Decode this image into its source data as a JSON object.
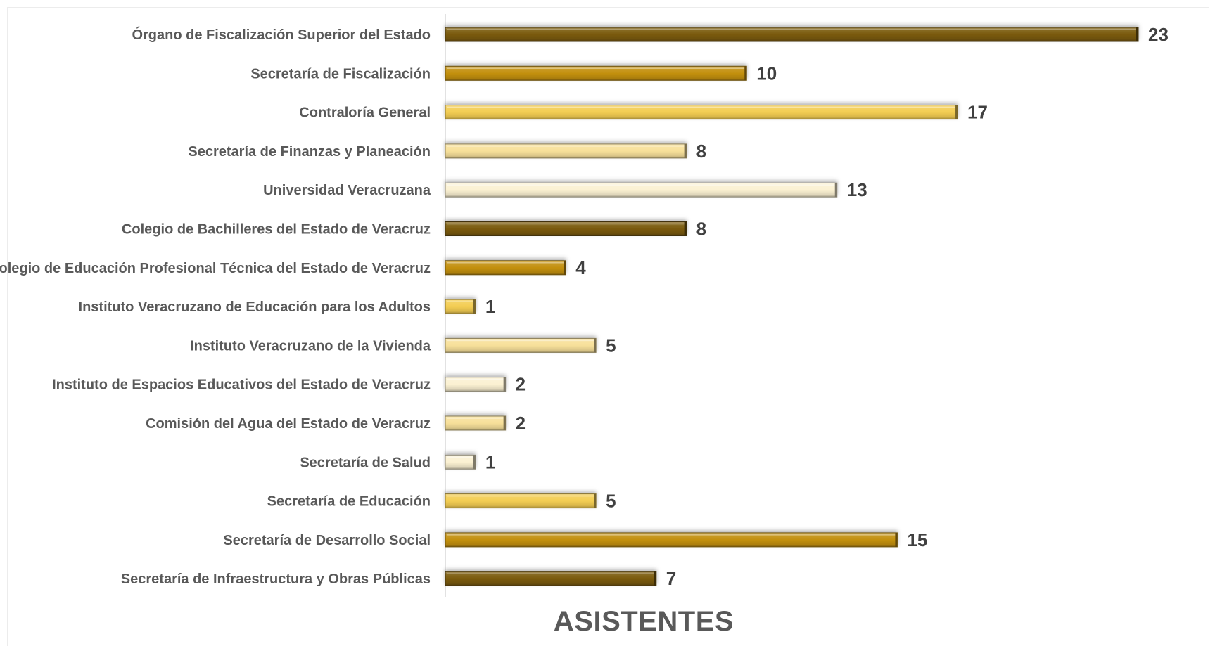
{
  "chart_data": {
    "type": "bar",
    "orientation": "horizontal",
    "title": "",
    "xlabel": "ASISTENTES",
    "ylabel": "",
    "xlim": [
      0,
      23
    ],
    "grid": false,
    "legend": "none",
    "data_labels": true,
    "categories": [
      "Órgano de Fiscalización Superior del Estado",
      "Secretaría de Fiscalización",
      "Contraloría General",
      "Secretaría de Finanzas y Planeación",
      "Universidad Veracruzana",
      "Colegio de Bachilleres del Estado de Veracruz",
      "Colegio de Educación Profesional Técnica del Estado de Veracruz",
      "Instituto Veracruzano de Educación para los Adultos",
      "Instituto Veracruzano de la Vivienda",
      "Instituto de Espacios Educativos del Estado de Veracruz",
      "Comisión del Agua del Estado de Veracruz",
      "Secretaría de Salud",
      "Secretaría de Educación",
      "Secretaría de Desarrollo Social",
      "Secretaría de Infraestructura y Obras Públicas"
    ],
    "values": [
      23,
      10,
      17,
      8,
      13,
      8,
      4,
      1,
      5,
      2,
      2,
      1,
      5,
      15,
      7
    ],
    "bar_colors": [
      "#7a5a0c",
      "#c3900f",
      "#f3cd53",
      "#f7e09a",
      "#fbf1d2",
      "#7a5a0c",
      "#c3900f",
      "#f3cd53",
      "#f7e09a",
      "#fbf1d2",
      "#f7e09a",
      "#fbf1d2",
      "#f3cd53",
      "#c3900f",
      "#7a5a0c"
    ]
  }
}
